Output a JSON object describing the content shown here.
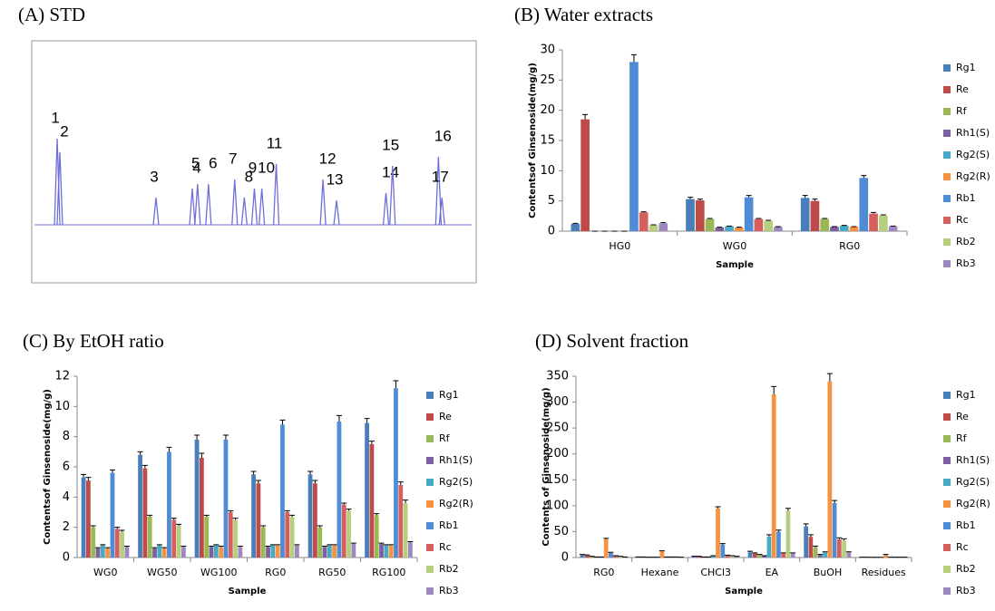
{
  "chart_data": [
    {
      "type": "chromatogram",
      "title": "(A) STD",
      "peaks": [
        "1",
        "2",
        "3",
        "4",
        "5",
        "6",
        "7",
        "8",
        "9",
        "10",
        "11",
        "12",
        "13",
        "14",
        "15",
        "16",
        "17"
      ],
      "x": [
        5.2,
        5.8,
        27.8,
        36.1,
        37.3,
        39.8,
        45.8,
        48.0,
        50.3,
        52.0,
        55.3,
        66.0,
        69.1,
        80.4,
        81.9,
        92.4,
        93.2
      ],
      "values": [
        48.7,
        41,
        15.4,
        20.5,
        23,
        23,
        25.6,
        15.4,
        20.5,
        20.5,
        34.4,
        25.6,
        13.8,
        18,
        33.3,
        38.5,
        15.4
      ],
      "xlim": [
        0,
        100
      ],
      "ylim": [
        0,
        100
      ],
      "color": "#6f6fd8"
    },
    {
      "type": "bar",
      "title": "(B) Water extracts",
      "xlabel": "Sample",
      "ylabel": "Contentsof Ginsenoside(mg/g)",
      "categories": [
        "HG0",
        "WG0",
        "RG0"
      ],
      "ylim": [
        0,
        30
      ],
      "yticks": [
        0,
        5,
        10,
        15,
        20,
        25,
        30
      ],
      "series": [
        {
          "name": "Rg1",
          "color": "#4a7ebb",
          "values": [
            1.2,
            5.3,
            5.5
          ],
          "errors": [
            0.1,
            0.3,
            0.4
          ]
        },
        {
          "name": "Re",
          "color": "#be4b48",
          "values": [
            18.5,
            5.1,
            5.0
          ],
          "errors": [
            0.8,
            0.2,
            0.3
          ]
        },
        {
          "name": "Rf",
          "color": "#98b954",
          "values": [
            0,
            2.0,
            2.0
          ],
          "errors": [
            0,
            0.1,
            0.1
          ]
        },
        {
          "name": "Rh1(S)",
          "color": "#7d60a0",
          "values": [
            0,
            0.6,
            0.7
          ],
          "errors": [
            0,
            0.05,
            0.05
          ]
        },
        {
          "name": "Rg2(S)",
          "color": "#46aac5",
          "values": [
            0,
            0.8,
            0.9
          ],
          "errors": [
            0,
            0.05,
            0.05
          ]
        },
        {
          "name": "Rg2(R)",
          "color": "#f69240",
          "values": [
            0,
            0.6,
            0.7
          ],
          "errors": [
            0,
            0.05,
            0.05
          ]
        },
        {
          "name": "Rb1",
          "color": "#4f8cd5",
          "values": [
            28,
            5.6,
            8.8
          ],
          "errors": [
            1.2,
            0.3,
            0.4
          ]
        },
        {
          "name": "Rc",
          "color": "#d55f5c",
          "values": [
            3.1,
            2.0,
            2.9
          ],
          "errors": [
            0.1,
            0.1,
            0.2
          ]
        },
        {
          "name": "Rb2",
          "color": "#b5cf7e",
          "values": [
            1.0,
            1.7,
            2.6
          ],
          "errors": [
            0.05,
            0.1,
            0.1
          ]
        },
        {
          "name": "Rb3",
          "color": "#9e88c0",
          "values": [
            1.3,
            0.7,
            0.8
          ],
          "errors": [
            0.1,
            0.05,
            0.05
          ]
        }
      ]
    },
    {
      "type": "bar",
      "title": "(C) By EtOH ratio",
      "xlabel": "Sample",
      "ylabel": "Contentsof Ginsenoside(mg/g)",
      "categories": [
        "WG0",
        "WG50",
        "WG100",
        "RG0",
        "RG50",
        "RG100"
      ],
      "ylim": [
        0,
        12
      ],
      "yticks": [
        0,
        2,
        4,
        6,
        8,
        10,
        12
      ],
      "series": [
        {
          "name": "Rg1",
          "color": "#4a7ebb",
          "values": [
            5.3,
            6.8,
            7.8,
            5.5,
            5.5,
            8.9
          ],
          "errors": [
            0.2,
            0.2,
            0.3,
            0.2,
            0.2,
            0.3
          ]
        },
        {
          "name": "Re",
          "color": "#be4b48",
          "values": [
            5.1,
            5.9,
            6.6,
            4.9,
            4.9,
            7.5
          ],
          "errors": [
            0.2,
            0.2,
            0.3,
            0.2,
            0.2,
            0.2
          ]
        },
        {
          "name": "Rf",
          "color": "#98b954",
          "values": [
            2.0,
            2.7,
            2.7,
            2.0,
            2.0,
            2.8
          ],
          "errors": [
            0.1,
            0.1,
            0.1,
            0.1,
            0.1,
            0.1
          ]
        },
        {
          "name": "Rh1(S)",
          "color": "#7d60a0",
          "values": [
            0.6,
            0.6,
            0.7,
            0.7,
            0.7,
            0.9
          ],
          "errors": [
            0.05,
            0.05,
            0.05,
            0.05,
            0.05,
            0.05
          ]
        },
        {
          "name": "Rg2(S)",
          "color": "#46aac5",
          "values": [
            0.8,
            0.8,
            0.8,
            0.8,
            0.8,
            0.8
          ],
          "errors": [
            0.05,
            0.05,
            0.05,
            0.05,
            0.05,
            0.05
          ]
        },
        {
          "name": "Rg2(R)",
          "color": "#f69240",
          "values": [
            0.6,
            0.6,
            0.7,
            0.8,
            0.8,
            0.8
          ],
          "errors": [
            0.05,
            0.05,
            0.05,
            0.05,
            0.05,
            0.05
          ]
        },
        {
          "name": "Rb1",
          "color": "#4f8cd5",
          "values": [
            5.6,
            7.0,
            7.8,
            8.8,
            9.0,
            11.2
          ],
          "errors": [
            0.2,
            0.3,
            0.3,
            0.3,
            0.4,
            0.5
          ]
        },
        {
          "name": "Rc",
          "color": "#d55f5c",
          "values": [
            1.9,
            2.5,
            3.0,
            3.0,
            3.5,
            4.8
          ],
          "errors": [
            0.1,
            0.1,
            0.1,
            0.1,
            0.1,
            0.2
          ]
        },
        {
          "name": "Rb2",
          "color": "#b5cf7e",
          "values": [
            1.7,
            2.1,
            2.5,
            2.7,
            3.1,
            3.6
          ],
          "errors": [
            0.1,
            0.1,
            0.1,
            0.1,
            0.1,
            0.2
          ]
        },
        {
          "name": "Rb3",
          "color": "#9e88c0",
          "values": [
            0.7,
            0.7,
            0.7,
            0.8,
            0.9,
            1.0
          ],
          "errors": [
            0.05,
            0.05,
            0.05,
            0.05,
            0.05,
            0.05
          ]
        }
      ]
    },
    {
      "type": "bar",
      "title": "(D) Solvent fraction",
      "xlabel": "Sample",
      "ylabel": "Contents of Ginsenoside(mg/g)",
      "categories": [
        "RG0",
        "Hexane",
        "CHCl3",
        "EA",
        "BuOH",
        "Residues"
      ],
      "ylim": [
        0,
        350
      ],
      "yticks": [
        0,
        50,
        100,
        150,
        200,
        250,
        300,
        350
      ],
      "series": [
        {
          "name": "Rg1",
          "color": "#4a7ebb",
          "values": [
            5,
            1,
            2,
            10,
            60,
            0.5
          ],
          "errors": [
            1,
            0.2,
            0.5,
            2,
            5,
            0.1
          ]
        },
        {
          "name": "Re",
          "color": "#be4b48",
          "values": [
            4,
            1,
            2,
            8,
            40,
            0.5
          ],
          "errors": [
            1,
            0.2,
            0.5,
            1,
            4,
            0.1
          ]
        },
        {
          "name": "Rf",
          "color": "#98b954",
          "values": [
            2,
            0.5,
            1,
            5,
            20,
            0.3
          ],
          "errors": [
            0.5,
            0.1,
            0.2,
            1,
            2,
            0.1
          ]
        },
        {
          "name": "Rh1(S)",
          "color": "#7d60a0",
          "values": [
            1,
            0.5,
            1,
            3,
            5,
            0.3
          ],
          "errors": [
            0.2,
            0.1,
            0.2,
            0.5,
            1,
            0.1
          ]
        },
        {
          "name": "Rg2(S)",
          "color": "#46aac5",
          "values": [
            1,
            0.5,
            3,
            40,
            10,
            0.3
          ],
          "errors": [
            0.2,
            0.1,
            0.5,
            4,
            1,
            0.1
          ]
        },
        {
          "name": "Rg2(R)",
          "color": "#f69240",
          "values": [
            35,
            12,
            95,
            315,
            340,
            5
          ],
          "errors": [
            2,
            1,
            3,
            15,
            15,
            1
          ]
        },
        {
          "name": "Rb1",
          "color": "#4f8cd5",
          "values": [
            9,
            1,
            25,
            50,
            105,
            0.5
          ],
          "errors": [
            1,
            0.2,
            2,
            3,
            5,
            0.1
          ]
        },
        {
          "name": "Rc",
          "color": "#d55f5c",
          "values": [
            3,
            1,
            4,
            8,
            35,
            0.5
          ],
          "errors": [
            0.5,
            0.2,
            0.5,
            1,
            3,
            0.1
          ]
        },
        {
          "name": "Rb2",
          "color": "#b5cf7e",
          "values": [
            2,
            1,
            3,
            90,
            33,
            0.5
          ],
          "errors": [
            0.5,
            0.2,
            0.5,
            5,
            3,
            0.1
          ]
        },
        {
          "name": "Rb3",
          "color": "#9e88c0",
          "values": [
            1,
            0.5,
            2,
            8,
            10,
            0.5
          ],
          "errors": [
            0.2,
            0.1,
            0.3,
            1,
            1,
            0.1
          ]
        }
      ]
    }
  ]
}
